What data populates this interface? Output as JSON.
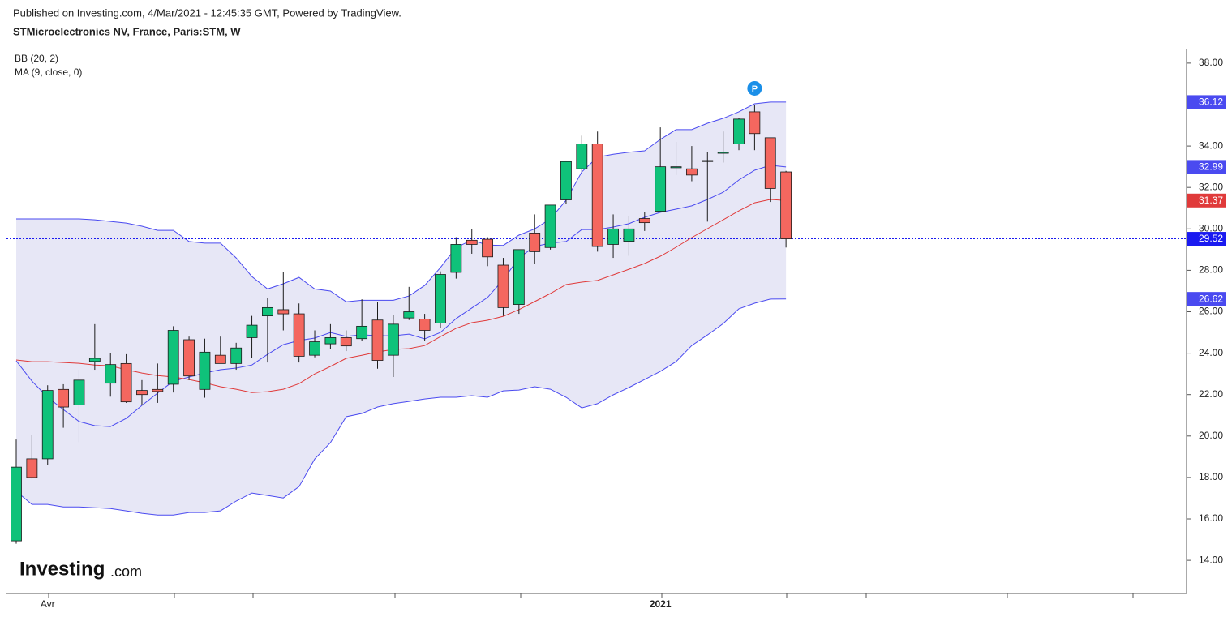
{
  "header": {
    "published": "Published on Investing.com, 4/Mar/2021 - 12:45:35 GMT, Powered by TradingView.",
    "symbol": "STMicroelectronics NV, France, Paris:STM, W"
  },
  "logo": {
    "brand": "Investing",
    "suffix": ".com"
  },
  "chart_data": {
    "type": "candlestick",
    "categories": [
      null,
      null,
      "Avr",
      null,
      null,
      null,
      null,
      null,
      null,
      null,
      null,
      null,
      null,
      null,
      null,
      null,
      null,
      null,
      null,
      null,
      null,
      null,
      null,
      null,
      null,
      null,
      null,
      null,
      null,
      null,
      null,
      null,
      null,
      null,
      null,
      null,
      null,
      null,
      null,
      null,
      null,
      "2021",
      null,
      null,
      null,
      null,
      null,
      null,
      null,
      null
    ],
    "ohlc": {
      "open": [
        14.94,
        18.9,
        18.9,
        22.25,
        21.5,
        23.6,
        22.55,
        23.5,
        22.2,
        22.25,
        22.5,
        24.65,
        22.25,
        23.9,
        23.5,
        24.75,
        25.8,
        26.1,
        25.9,
        23.9,
        24.45,
        24.75,
        24.7,
        25.6,
        23.9,
        25.7,
        25.65,
        25.45,
        27.9,
        29.45,
        29.5,
        28.25,
        26.35,
        29.8,
        29.1,
        31.4,
        32.9,
        34.1,
        29.25,
        29.4,
        30.5,
        30.85,
        32.95,
        32.9,
        33.25,
        33.65,
        34.1,
        35.65,
        34.4,
        32.75
      ],
      "high": [
        19.83,
        20.05,
        22.45,
        22.5,
        23.2,
        25.4,
        24.0,
        23.95,
        22.7,
        23.5,
        25.3,
        24.8,
        24.7,
        24.8,
        24.5,
        25.8,
        26.65,
        27.9,
        26.4,
        25.1,
        25.4,
        25.1,
        26.6,
        26.45,
        25.85,
        27.2,
        25.9,
        27.95,
        29.6,
        30.0,
        29.6,
        28.6,
        29.0,
        30.7,
        31.15,
        33.3,
        34.5,
        34.7,
        30.7,
        30.6,
        30.8,
        34.9,
        34.2,
        34.0,
        33.7,
        34.7,
        35.35,
        36.0,
        34.4,
        32.8
      ],
      "low": [
        14.8,
        17.95,
        18.6,
        20.4,
        19.7,
        23.2,
        21.9,
        21.6,
        21.5,
        21.6,
        22.1,
        22.7,
        21.85,
        23.5,
        23.2,
        23.75,
        23.55,
        25.1,
        23.55,
        23.8,
        24.2,
        24.1,
        24.6,
        23.25,
        22.85,
        25.6,
        24.6,
        25.2,
        27.6,
        28.8,
        28.2,
        25.8,
        25.9,
        28.3,
        29.0,
        31.2,
        32.75,
        28.9,
        28.6,
        28.7,
        29.9,
        30.8,
        32.6,
        32.3,
        30.35,
        33.2,
        33.8,
        33.8,
        31.3,
        29.1
      ],
      "close": [
        18.5,
        18.0,
        22.2,
        21.4,
        22.7,
        23.75,
        23.45,
        21.65,
        22.0,
        22.15,
        25.1,
        22.9,
        24.05,
        23.5,
        24.25,
        25.35,
        26.2,
        25.9,
        23.85,
        24.55,
        24.75,
        24.35,
        25.3,
        23.65,
        25.4,
        26.0,
        25.1,
        27.8,
        29.25,
        29.25,
        28.65,
        26.2,
        29.0,
        28.9,
        31.15,
        33.25,
        34.1,
        29.15,
        30.0,
        30.0,
        30.3,
        33.0,
        33.0,
        32.6,
        33.3,
        33.7,
        35.3,
        34.6,
        31.95,
        29.52
      ]
    },
    "up_color": "#0fc27a",
    "down_color": "#f4675f",
    "last_price_color": "#1a1af0",
    "bands": {
      "name": "BB (20, 2)",
      "color": "#4a4af0",
      "fill": "rgba(110,110,200,0.17)",
      "upper": [
        30.48,
        30.48,
        30.48,
        30.48,
        30.48,
        30.44,
        30.36,
        30.28,
        30.13,
        29.93,
        29.93,
        29.39,
        29.31,
        29.31,
        28.6,
        27.7,
        27.1,
        27.35,
        27.66,
        27.1,
        27.0,
        26.48,
        26.55,
        26.55,
        26.55,
        26.76,
        27.27,
        28.13,
        29.1,
        29.46,
        29.22,
        29.2,
        29.7,
        30.0,
        30.48,
        31.38,
        32.75,
        33.46,
        33.6,
        33.7,
        33.77,
        34.32,
        34.79,
        34.79,
        35.1,
        35.34,
        35.65,
        36.04,
        36.12,
        36.12
      ],
      "basis": [
        23.63,
        22.65,
        21.87,
        21.28,
        20.7,
        20.5,
        20.46,
        20.85,
        21.48,
        22.07,
        22.65,
        22.85,
        23.04,
        23.2,
        23.28,
        23.43,
        23.94,
        24.41,
        24.61,
        24.73,
        25.0,
        24.81,
        24.89,
        24.84,
        24.84,
        24.92,
        24.69,
        25.0,
        25.67,
        26.18,
        26.69,
        27.55,
        28.6,
        29.15,
        29.31,
        29.39,
        29.97,
        29.97,
        30.09,
        30.25,
        30.56,
        30.8,
        30.95,
        31.11,
        31.42,
        31.77,
        32.36,
        32.83,
        33.07,
        32.99
      ],
      "lower": [
        17.33,
        16.7,
        16.7,
        16.58,
        16.58,
        16.54,
        16.5,
        16.39,
        16.27,
        16.19,
        16.19,
        16.31,
        16.31,
        16.39,
        16.86,
        17.25,
        17.13,
        17.01,
        17.56,
        18.89,
        19.68,
        20.93,
        21.09,
        21.4,
        21.56,
        21.67,
        21.79,
        21.87,
        21.87,
        21.95,
        21.87,
        22.18,
        22.22,
        22.38,
        22.26,
        21.87,
        21.36,
        21.56,
        21.99,
        22.34,
        22.73,
        23.12,
        23.59,
        24.37,
        24.88,
        25.43,
        26.14,
        26.41,
        26.61,
        26.62
      ]
    },
    "ma": {
      "name": "MA (9, close, 0)",
      "color": "#e03a3a",
      "values": [
        23.67,
        23.59,
        23.59,
        23.55,
        23.51,
        23.43,
        23.39,
        23.2,
        23.04,
        22.92,
        22.85,
        22.73,
        22.57,
        22.38,
        22.26,
        22.1,
        22.14,
        22.26,
        22.53,
        23.0,
        23.36,
        23.75,
        23.9,
        24.06,
        24.18,
        24.22,
        24.37,
        24.8,
        25.2,
        25.47,
        25.59,
        25.78,
        26.1,
        26.49,
        26.88,
        27.31,
        27.43,
        27.51,
        27.78,
        28.05,
        28.33,
        28.68,
        29.11,
        29.58,
        30.01,
        30.44,
        30.87,
        31.26,
        31.42,
        31.37
      ]
    },
    "marker": "P",
    "ylim": [
      12.4,
      38.7
    ],
    "yticks": [
      {
        "value": 14,
        "label": "14.00"
      },
      {
        "value": 16,
        "label": "16.00"
      },
      {
        "value": 18,
        "label": "18.00"
      },
      {
        "value": 20,
        "label": "20.00"
      },
      {
        "value": 22,
        "label": "22.00"
      },
      {
        "value": 24,
        "label": "24.00"
      },
      {
        "value": 26,
        "label": "26.00"
      },
      {
        "value": 28,
        "label": "28.00"
      },
      {
        "value": 30,
        "label": "30.00"
      },
      {
        "value": 32,
        "label": "32.00"
      },
      {
        "value": 34,
        "label": "34.00"
      },
      {
        "value": 36,
        "label": "36.00"
      },
      {
        "value": 38,
        "label": "38.00"
      }
    ],
    "grid": false
  }
}
